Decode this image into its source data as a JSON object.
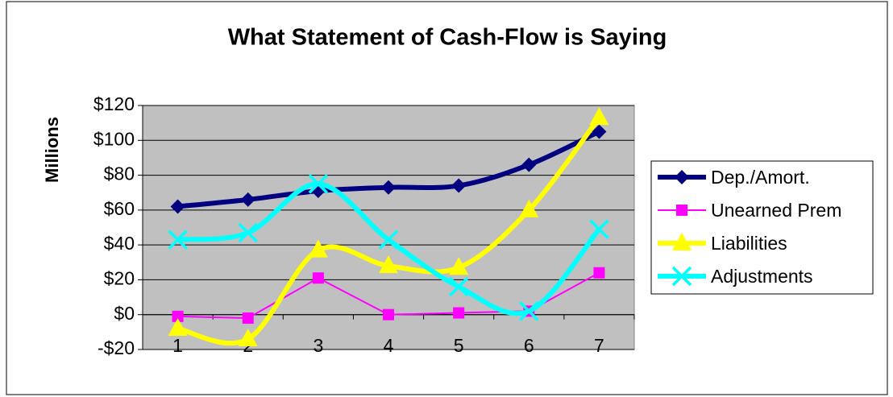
{
  "chart_data": {
    "type": "line",
    "title": "What Statement of Cash-Flow is Saying",
    "y_label": "Millions",
    "categories": [
      "1",
      "2",
      "3",
      "4",
      "5",
      "6",
      "7"
    ],
    "series": [
      {
        "name": "Dep./Amort.",
        "color": "#000080",
        "marker": "diamond",
        "smooth": true,
        "values": [
          62,
          66,
          71,
          73,
          74,
          86,
          105
        ]
      },
      {
        "name": "Unearned Prem",
        "color": "#ff00ff",
        "marker": "square",
        "smooth": false,
        "values": [
          -1,
          -2,
          21,
          0,
          1,
          2,
          24
        ]
      },
      {
        "name": "Liabilities",
        "color": "#ffff00",
        "marker": "triangle",
        "smooth": true,
        "values": [
          -8,
          -14,
          37,
          28,
          27,
          60,
          113
        ]
      },
      {
        "name": "Adjustments",
        "color": "#00ffff",
        "marker": "x",
        "smooth": true,
        "values": [
          43,
          47,
          75,
          43,
          16,
          2,
          49
        ]
      }
    ],
    "ylim": [
      -20,
      120
    ],
    "yticks": [
      {
        "value": -20,
        "label": "-$20"
      },
      {
        "value": 0,
        "label": "$0"
      },
      {
        "value": 20,
        "label": "$20"
      },
      {
        "value": 40,
        "label": "$40"
      },
      {
        "value": 60,
        "label": "$60"
      },
      {
        "value": 80,
        "label": "$80"
      },
      {
        "value": 100,
        "label": "$100"
      },
      {
        "value": 120,
        "label": "$120"
      }
    ],
    "grid": true,
    "legend": "right",
    "plot_background": "#c0c0c0"
  }
}
